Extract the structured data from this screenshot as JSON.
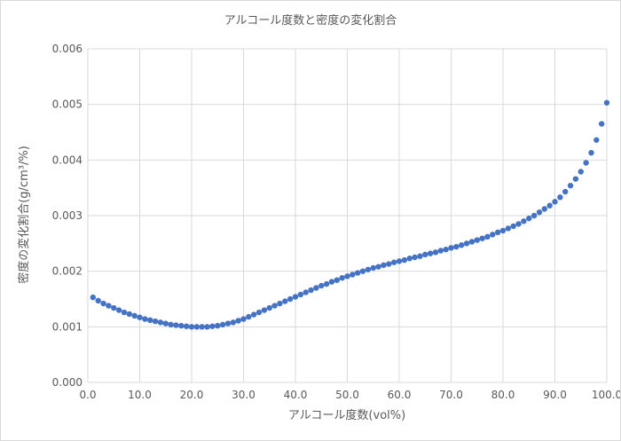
{
  "chart_data": {
    "type": "scatter",
    "title": "アルコール度数と密度の変化割合",
    "xlabel": "アルコール度数(vol%)",
    "ylabel": "密度の変化割合(g/cm³/%)",
    "xlim": [
      0,
      100
    ],
    "ylim": [
      0,
      0.006
    ],
    "x_ticks": [
      "0.0",
      "10.0",
      "20.0",
      "30.0",
      "40.0",
      "50.0",
      "60.0",
      "70.0",
      "80.0",
      "90.0",
      "100.0"
    ],
    "y_ticks": [
      "0.000",
      "0.001",
      "0.002",
      "0.003",
      "0.004",
      "0.005",
      "0.006"
    ],
    "grid": true,
    "marker_color": "#4472C4",
    "series": [
      {
        "x": [
          1,
          2,
          3,
          4,
          5,
          6,
          7,
          8,
          9,
          10,
          11,
          12,
          13,
          14,
          15,
          16,
          17,
          18,
          19,
          20,
          21,
          22,
          23,
          24,
          25,
          26,
          27,
          28,
          29,
          30,
          31,
          32,
          33,
          34,
          35,
          36,
          37,
          38,
          39,
          40,
          41,
          42,
          43,
          44,
          45,
          46,
          47,
          48,
          49,
          50,
          51,
          52,
          53,
          54,
          55,
          56,
          57,
          58,
          59,
          60,
          61,
          62,
          63,
          64,
          65,
          66,
          67,
          68,
          69,
          70,
          71,
          72,
          73,
          74,
          75,
          76,
          77,
          78,
          79,
          80,
          81,
          82,
          83,
          84,
          85,
          86,
          87,
          88,
          89,
          90,
          91,
          92,
          93,
          94,
          95,
          96,
          97,
          98,
          99,
          100
        ],
        "y": [
          0.00153,
          0.00147,
          0.00142,
          0.00138,
          0.00134,
          0.0013,
          0.00126,
          0.00123,
          0.0012,
          0.00117,
          0.00114,
          0.00112,
          0.0011,
          0.00108,
          0.00106,
          0.00104,
          0.00103,
          0.00102,
          0.00101,
          0.001,
          0.001,
          0.001,
          0.001,
          0.00101,
          0.00102,
          0.00104,
          0.00106,
          0.00108,
          0.00111,
          0.00114,
          0.00118,
          0.00122,
          0.00126,
          0.0013,
          0.00134,
          0.00138,
          0.00142,
          0.00146,
          0.0015,
          0.00154,
          0.00158,
          0.00162,
          0.00166,
          0.0017,
          0.00174,
          0.00177,
          0.00181,
          0.00184,
          0.00188,
          0.00191,
          0.00194,
          0.00197,
          0.002,
          0.00203,
          0.00206,
          0.00208,
          0.00211,
          0.00213,
          0.00216,
          0.00218,
          0.0022,
          0.00223,
          0.00225,
          0.00227,
          0.0023,
          0.00232,
          0.00234,
          0.00237,
          0.00239,
          0.00242,
          0.00244,
          0.00247,
          0.0025,
          0.00253,
          0.00256,
          0.00259,
          0.00262,
          0.00266,
          0.0027,
          0.00273,
          0.00277,
          0.00281,
          0.00285,
          0.0029,
          0.00295,
          0.003,
          0.00306,
          0.00312,
          0.00318,
          0.00325,
          0.00333,
          0.00343,
          0.00354,
          0.00366,
          0.00379,
          0.00395,
          0.00413,
          0.00436,
          0.00465,
          0.00503
        ]
      }
    ]
  }
}
